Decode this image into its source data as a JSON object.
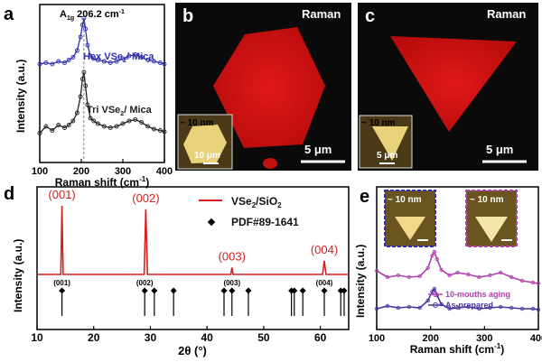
{
  "panels": {
    "a": {
      "letter": "a",
      "peak_label": "A",
      "peak_sub": "1g",
      "peak_value": " 206.2 cm",
      "peak_sup": "-1",
      "ylabel": "Intensity (a.u.)",
      "xlabel": "Raman shift (cm",
      "xlabel_sup": "-1",
      "xlabel_end": ")",
      "hex_label_a": "Hex VSe",
      "hex_label_b": "/ Mica",
      "tri_label_a": "Tri VSe",
      "tri_label_b": "/ Mica",
      "sub2": "2"
    },
    "b": {
      "letter": "b",
      "title": "Raman",
      "scale": "5 μm",
      "inset_thickness": "~ 10 nm",
      "inset_scale": "10 μm"
    },
    "c": {
      "letter": "c",
      "title": "Raman",
      "scale": "5 μm",
      "inset_thickness": "~ 10 nm",
      "inset_scale": "5 μm"
    },
    "d": {
      "letter": "d",
      "ylabel": "Intensity (a.u.)",
      "xlabel": "2θ (°)",
      "legend_line_a": "VSe",
      "legend_line_b": "/SiO",
      "legend_sub": "2",
      "legend_ref": "PDF#89-1641"
    },
    "e": {
      "letter": "e",
      "ylabel": "Intensity (a.u.)",
      "xlabel": "Raman shift (cm",
      "xlabel_sup": "-1",
      "xlabel_end": ")",
      "inset_thickness_1": "~ 10 nm",
      "inset_thickness_2": "~ 10 nm",
      "legend_aging": "10-mouths aging",
      "legend_prepared": "As-prepared"
    }
  },
  "colors": {
    "hex": "#2f2fb0",
    "tri": "#222222",
    "xrd": "#d42020",
    "ref": "#000000",
    "aging": "#b040b0",
    "prepared": "#4a32a0",
    "map": "#d81010",
    "inset_box_1": "#2f2fb0",
    "inset_box_2": "#b040b0"
  },
  "chart_data": [
    {
      "panel": "a",
      "type": "line",
      "xlim": [
        100,
        400
      ],
      "xticks": [
        100,
        200,
        300,
        400
      ],
      "series": [
        {
          "name": "Hex VSe2 / Mica",
          "x": [
            100,
            115,
            130,
            145,
            160,
            170,
            180,
            190,
            198,
            203,
            206.2,
            210,
            215,
            222,
            230,
            240,
            255,
            270,
            285,
            300,
            315,
            330,
            345,
            360,
            375,
            390,
            400
          ],
          "y": [
            0.66,
            0.67,
            0.66,
            0.68,
            0.67,
            0.69,
            0.71,
            0.76,
            0.86,
            0.95,
            1.0,
            0.92,
            0.8,
            0.72,
            0.7,
            0.69,
            0.68,
            0.67,
            0.68,
            0.7,
            0.72,
            0.73,
            0.71,
            0.69,
            0.68,
            0.67,
            0.66
          ]
        },
        {
          "name": "Tri VSe2 / Mica",
          "x": [
            100,
            115,
            130,
            145,
            160,
            170,
            180,
            190,
            198,
            203,
            206.2,
            210,
            215,
            222,
            230,
            240,
            255,
            270,
            285,
            300,
            315,
            330,
            345,
            360,
            375,
            390,
            400
          ],
          "y": [
            0.15,
            0.2,
            0.17,
            0.21,
            0.19,
            0.21,
            0.24,
            0.3,
            0.42,
            0.55,
            0.6,
            0.5,
            0.36,
            0.26,
            0.24,
            0.22,
            0.2,
            0.19,
            0.2,
            0.22,
            0.24,
            0.25,
            0.23,
            0.2,
            0.18,
            0.17,
            0.16
          ]
        }
      ]
    },
    {
      "panel": "d",
      "type": "line",
      "xlim": [
        10,
        65
      ],
      "xticks": [
        10,
        20,
        30,
        40,
        50,
        60
      ],
      "series": [
        {
          "name": "VSe2/SiO2",
          "x": [
            10,
            14.2,
            14.4,
            14.6,
            22,
            28.9,
            29.2,
            29.5,
            44.2,
            44.4,
            44.6,
            60.4,
            60.7,
            61.0,
            65
          ],
          "y": [
            0.0,
            0.0,
            1.0,
            0.0,
            0.0,
            0.0,
            0.95,
            0.0,
            0.0,
            0.1,
            0.0,
            0.0,
            0.2,
            0.0,
            0.0
          ]
        }
      ],
      "peak_labels": [
        {
          "x": 14.4,
          "label": "(001)"
        },
        {
          "x": 29.2,
          "label": "(002)"
        },
        {
          "x": 44.4,
          "label": "(003)"
        },
        {
          "x": 60.7,
          "label": "(004)"
        }
      ],
      "reference": {
        "name": "PDF#89-1641",
        "x": [
          14.4,
          29.0,
          30.7,
          34.1,
          43.0,
          44.4,
          47.3,
          54.9,
          55.4,
          56.9,
          60.7,
          63.6,
          64.2
        ],
        "labels": [
          {
            "x": 14.4,
            "label": "(001)"
          },
          {
            "x": 29.0,
            "label": "(002)"
          },
          {
            "x": 44.4,
            "label": "(003)"
          },
          {
            "x": 60.7,
            "label": "(004)"
          }
        ]
      }
    },
    {
      "panel": "e",
      "type": "line",
      "xlim": [
        100,
        400
      ],
      "xticks": [
        100,
        200,
        300,
        400
      ],
      "series": [
        {
          "name": "10-mouths aging",
          "x": [
            100,
            120,
            140,
            160,
            180,
            195,
            203,
            207,
            212,
            220,
            235,
            250,
            270,
            290,
            310,
            330,
            350,
            370,
            390,
            400
          ],
          "y": [
            0.57,
            0.5,
            0.52,
            0.5,
            0.51,
            0.6,
            0.74,
            0.78,
            0.7,
            0.58,
            0.52,
            0.55,
            0.53,
            0.5,
            0.52,
            0.55,
            0.5,
            0.46,
            0.44,
            0.43
          ]
        },
        {
          "name": "As-prepared",
          "x": [
            100,
            120,
            140,
            160,
            180,
            195,
            203,
            207,
            212,
            220,
            235,
            250,
            270,
            290,
            310,
            330,
            350,
            370,
            390,
            400
          ],
          "y": [
            0.15,
            0.18,
            0.16,
            0.17,
            0.16,
            0.24,
            0.34,
            0.37,
            0.3,
            0.2,
            0.15,
            0.16,
            0.17,
            0.15,
            0.16,
            0.17,
            0.16,
            0.15,
            0.15,
            0.14
          ]
        }
      ]
    }
  ]
}
